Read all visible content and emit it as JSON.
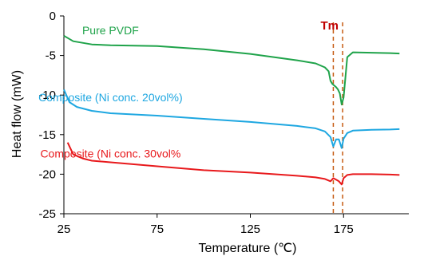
{
  "chart_data": {
    "type": "line",
    "title": "",
    "xlabel": "Temperature (℃)",
    "ylabel": "Heat flow (mW)",
    "xlim": [
      25,
      210
    ],
    "ylim": [
      -25,
      0
    ],
    "x_ticks": [
      25,
      75,
      125,
      175
    ],
    "x_tick_labels": [
      "25",
      "75",
      "125",
      "175"
    ],
    "y_ticks": [
      0,
      -5,
      -10,
      -15,
      -20,
      -25
    ],
    "y_tick_labels": [
      "0",
      "-5",
      "-10",
      "-15",
      "-20",
      "-25"
    ],
    "grid": false,
    "legend": "inline labels above each curve",
    "series": [
      {
        "name": "Pure PVDF",
        "color": "#1fa34a",
        "label_pos": [
          50,
          -2.3
        ],
        "x": [
          25,
          30,
          40,
          50,
          75,
          100,
          125,
          150,
          160,
          165,
          167,
          168,
          169,
          170,
          171,
          172,
          173,
          174,
          175,
          177,
          180,
          190,
          200,
          205
        ],
        "y": [
          -2.5,
          -3.2,
          -3.6,
          -3.7,
          -3.8,
          -4.2,
          -4.8,
          -5.6,
          -6.0,
          -6.5,
          -7.0,
          -8.2,
          -8.6,
          -8.8,
          -9.0,
          -9.3,
          -9.8,
          -11.2,
          -10.3,
          -5.2,
          -4.6,
          -4.65,
          -4.7,
          -4.75
        ]
      },
      {
        "name": "Composite (Ni conc. 20vol%)",
        "color": "#1ea7e1",
        "label_pos": [
          50,
          -10.8
        ],
        "x": [
          25,
          28,
          32,
          40,
          50,
          75,
          100,
          125,
          150,
          160,
          165,
          168,
          169.5,
          171,
          172.5,
          174,
          175,
          177,
          180,
          190,
          200,
          205
        ],
        "y": [
          -9.3,
          -10.9,
          -11.5,
          -12.0,
          -12.3,
          -12.6,
          -13.0,
          -13.4,
          -13.9,
          -14.2,
          -14.6,
          -15.3,
          -16.5,
          -15.6,
          -15.6,
          -16.7,
          -15.5,
          -14.8,
          -14.5,
          -14.4,
          -14.35,
          -14.3
        ]
      },
      {
        "name": "Composite (Ni conc. 30vol%",
        "color": "#e8191c",
        "label_pos": [
          50,
          -17.9
        ],
        "x": [
          27,
          30,
          35,
          40,
          50,
          75,
          100,
          125,
          150,
          160,
          165,
          168,
          169.5,
          171,
          172.5,
          174,
          175,
          177,
          180,
          190,
          200,
          205
        ],
        "y": [
          -16.0,
          -17.5,
          -18.0,
          -18.3,
          -18.5,
          -19.0,
          -19.5,
          -19.8,
          -20.2,
          -20.4,
          -20.6,
          -20.9,
          -20.5,
          -20.7,
          -20.9,
          -21.3,
          -20.5,
          -20.1,
          -20.0,
          -20.0,
          -20.05,
          -20.1
        ]
      }
    ],
    "annotations": [
      {
        "text": "Tm",
        "color": "#c00000",
        "x": 167.5,
        "y": -1.2
      }
    ],
    "reference_lines": [
      {
        "orientation": "vertical",
        "x": 169.5,
        "color": "#c55a11",
        "style": "dashed"
      },
      {
        "orientation": "vertical",
        "x": 174.5,
        "color": "#c55a11",
        "style": "dashed"
      }
    ]
  }
}
